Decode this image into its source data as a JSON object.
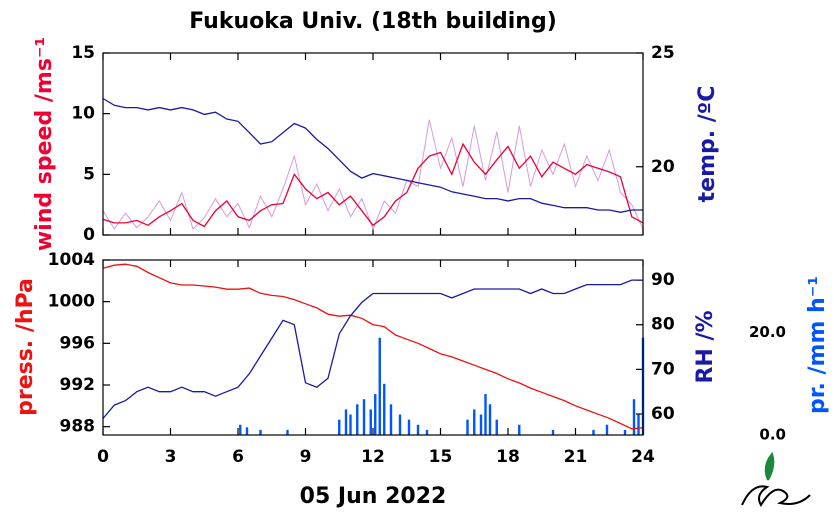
{
  "chart_data": [
    {
      "type": "line",
      "title": "Fukuoka Univ. (18th building)",
      "ylabel": "wind speed /ms⁻¹",
      "y2label": "temp. /ºC",
      "xlim": [
        0,
        24
      ],
      "ylim": [
        0,
        15
      ],
      "yticks": [
        0,
        5,
        10,
        15
      ],
      "y2lim": [
        17,
        25
      ],
      "y2ticks": [
        20,
        25
      ],
      "x": [
        0,
        0.5,
        1,
        1.5,
        2,
        2.5,
        3,
        3.5,
        4,
        4.5,
        5,
        5.5,
        6,
        6.5,
        7,
        7.5,
        8,
        8.5,
        9,
        9.5,
        10,
        10.5,
        11,
        11.5,
        12,
        12.5,
        13,
        13.5,
        14,
        14.5,
        15,
        15.5,
        16,
        16.5,
        17,
        17.5,
        18,
        18.5,
        19,
        19.5,
        20,
        20.5,
        21,
        21.5,
        22,
        22.5,
        23,
        23.5,
        24
      ],
      "series": [
        {
          "color": "#d89ad8",
          "values": [
            2.0,
            0.5,
            1.8,
            0.6,
            1.5,
            2.8,
            1.2,
            3.5,
            0.5,
            1.4,
            3.0,
            1.5,
            2.6,
            0.6,
            3.2,
            1.5,
            3.8,
            6.5,
            2.5,
            4.2,
            2.0,
            3.8,
            1.5,
            3.0,
            0.5,
            2.8,
            1.8,
            4.5,
            4.0,
            9.5,
            5.5,
            8.0,
            4.0,
            9.0,
            4.5,
            8.5,
            3.5,
            9.0,
            4.0,
            7.0,
            5.0,
            7.5,
            4.0,
            6.5,
            4.5,
            7.0,
            3.5,
            2.5,
            0.5
          ]
        },
        {
          "color": "#ee0033",
          "values": [
            1.3,
            1.0,
            1.0,
            1.2,
            0.8,
            1.5,
            2.0,
            2.6,
            1.2,
            0.7,
            2.0,
            2.8,
            1.5,
            1.2,
            2.0,
            2.5,
            2.6,
            5.0,
            3.8,
            3.0,
            3.5,
            2.5,
            3.2,
            2.0,
            0.8,
            1.5,
            2.8,
            3.5,
            5.5,
            6.5,
            6.8,
            5.0,
            7.5,
            6.0,
            5.0,
            6.2,
            7.3,
            5.5,
            6.5,
            4.8,
            6.0,
            5.5,
            5.0,
            5.8,
            5.5,
            5.2,
            4.8,
            1.5,
            1.0
          ]
        },
        {
          "color": "#1a1aa6",
          "axis": "y2",
          "values": [
            23.0,
            22.7,
            22.6,
            22.6,
            22.5,
            22.6,
            22.5,
            22.6,
            22.5,
            22.3,
            22.4,
            22.1,
            22.0,
            21.5,
            21.0,
            21.1,
            21.5,
            21.9,
            21.7,
            21.2,
            20.8,
            20.3,
            19.8,
            19.5,
            19.7,
            19.6,
            19.5,
            19.4,
            19.3,
            19.2,
            19.1,
            18.9,
            18.8,
            18.7,
            18.6,
            18.6,
            18.5,
            18.6,
            18.6,
            18.4,
            18.3,
            18.2,
            18.2,
            18.2,
            18.1,
            18.1,
            18.0,
            18.1,
            18.1
          ]
        }
      ]
    },
    {
      "type": "line",
      "ylabel": "press. /hPa",
      "y2label": "RH /%",
      "y3label": "pr. /mm h⁻¹",
      "xlabel": "05 Jun 2022",
      "xlim": [
        0,
        24
      ],
      "xticks": [
        0,
        3,
        6,
        9,
        12,
        15,
        18,
        21,
        24
      ],
      "ylim": [
        987.2,
        1004
      ],
      "yticks": [
        988,
        992,
        996,
        1000,
        1004
      ],
      "y2lim": [
        55.3,
        94.5
      ],
      "y2ticks": [
        60,
        70,
        80,
        90
      ],
      "y3lim": [
        0,
        34.2
      ],
      "y3ticks": [
        {
          "value": 0,
          "label": "0.0"
        },
        {
          "value": 20,
          "label": "20.0"
        }
      ],
      "x": [
        0,
        0.5,
        1,
        1.5,
        2,
        2.5,
        3,
        3.5,
        4,
        4.5,
        5,
        5.5,
        6,
        6.5,
        7,
        7.5,
        8,
        8.5,
        9,
        9.5,
        10,
        10.5,
        11,
        11.5,
        12,
        12.5,
        13,
        13.5,
        14,
        14.5,
        15,
        15.5,
        16,
        16.5,
        17,
        17.5,
        18,
        18.5,
        19,
        19.5,
        20,
        20.5,
        21,
        21.5,
        22,
        22.5,
        23,
        23.5,
        24
      ],
      "series": [
        {
          "type": "bar",
          "color": "#0055ff",
          "axis": "y3",
          "x": [
            6.1,
            6.4,
            7.0,
            8.2,
            10.5,
            10.8,
            11.0,
            11.3,
            11.6,
            11.9,
            12.1,
            12.3,
            12.5,
            12.8,
            13.2,
            13.6,
            14.0,
            14.4,
            16.2,
            16.5,
            16.8,
            17.0,
            17.2,
            17.5,
            18.5,
            20.0,
            21.8,
            22.4,
            23.2,
            23.6,
            23.8,
            24.0
          ],
          "values": [
            2,
            1.5,
            1,
            1,
            3,
            5,
            4,
            6,
            7,
            5,
            8,
            19,
            10,
            6,
            4,
            3,
            2,
            1,
            3,
            5,
            4,
            8,
            6,
            3,
            2,
            1,
            1,
            2,
            1,
            7,
            4,
            19
          ]
        },
        {
          "color": "#ee1111",
          "values": [
            1003.2,
            1003.5,
            1003.6,
            1003.4,
            1002.8,
            1002.3,
            1001.8,
            1001.6,
            1001.6,
            1001.5,
            1001.4,
            1001.2,
            1001.2,
            1001.3,
            1000.8,
            1000.6,
            1000.5,
            1000.2,
            999.8,
            999.4,
            998.8,
            998.6,
            998.7,
            998.4,
            997.8,
            997.6,
            996.8,
            996.4,
            996.0,
            995.5,
            995.0,
            994.7,
            994.3,
            993.9,
            993.5,
            993.1,
            992.6,
            992.2,
            991.7,
            991.3,
            990.9,
            990.5,
            990.0,
            989.6,
            989.2,
            988.8,
            988.3,
            987.8,
            987.9
          ]
        },
        {
          "color": "#1a1aa6",
          "axis": "y2",
          "values": [
            59,
            62,
            63,
            65,
            66,
            65,
            65,
            66,
            65,
            65,
            64,
            65,
            66,
            69,
            73,
            77,
            81,
            80,
            67,
            66,
            68,
            78,
            82,
            85,
            87,
            87,
            87,
            87,
            87,
            87,
            87,
            86,
            87,
            88,
            88,
            88,
            88,
            88,
            87,
            88,
            87,
            87,
            88,
            89,
            89,
            89,
            89,
            90,
            90
          ]
        }
      ]
    }
  ]
}
